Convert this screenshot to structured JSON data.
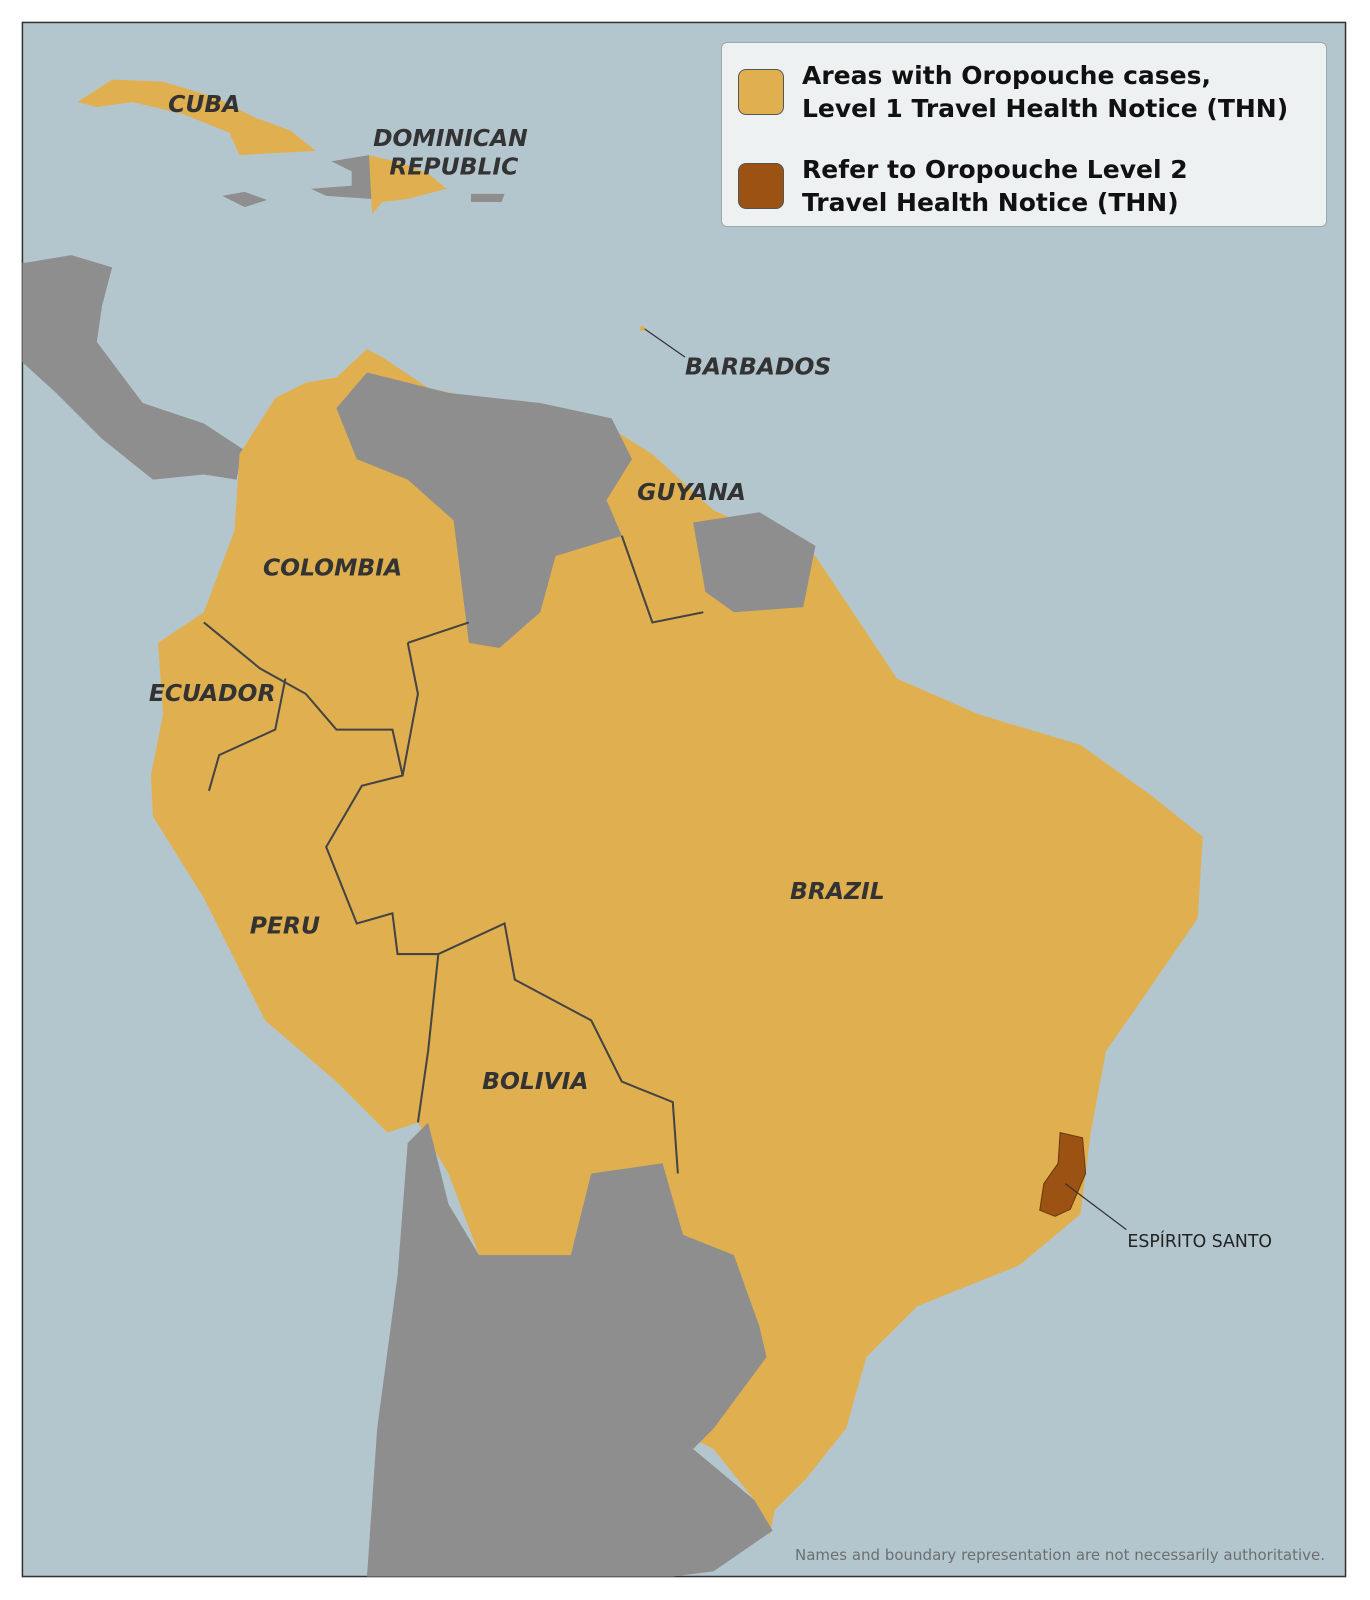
{
  "colors": {
    "ocean": "#b4c6cd",
    "level1": "#e0b050",
    "level2": "#9c5212",
    "other_land": "#8e8e8e",
    "border": "#444444"
  },
  "legend": {
    "items": [
      {
        "line1": "Areas with Oropouche cases,",
        "line2": "Level 1 Travel Health Notice (THN)",
        "color": "#e0b050"
      },
      {
        "line1": "Refer to Oropouche Level 2",
        "line2": "Travel Health Notice (THN)",
        "color": "#9c5212"
      }
    ]
  },
  "labels": {
    "cuba": "CUBA",
    "dominican_1": "DOMINICAN",
    "dominican_2": "REPUBLIC",
    "barbados": "BARBADOS",
    "guyana": "GUYANA",
    "colombia": "COLOMBIA",
    "ecuador": "ECUADOR",
    "peru": "PERU",
    "brazil": "BRAZIL",
    "bolivia": "BOLIVIA",
    "espirito_santo": "ESPÍRITO SANTO"
  },
  "disclaimer": "Names and boundary representation are not necessarily authoritative."
}
